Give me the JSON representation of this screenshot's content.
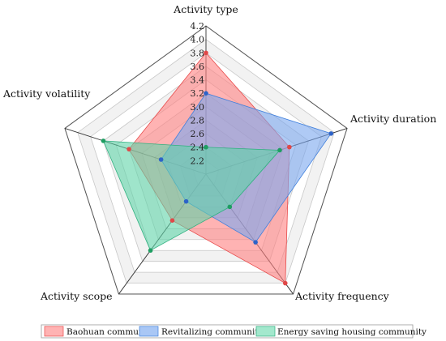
{
  "chart_data": {
    "type": "radar",
    "title": "",
    "axes": [
      "Activity type",
      "Activity duration",
      "Activity frequency",
      "Activity scope",
      "Activity volatility"
    ],
    "range": [
      2.0,
      4.2
    ],
    "ticks": [
      "4.2",
      "4.0",
      "3.8",
      "3.6",
      "3.4",
      "3.2",
      "3.0",
      "2.8",
      "2.6",
      "2.4",
      "2.2"
    ],
    "grid": true,
    "legend_position": "bottom",
    "series": [
      {
        "name": "Baohuan community",
        "values": [
          3.8,
          3.3,
          4.0,
          2.85,
          3.2
        ],
        "fill": "#ff8080",
        "stroke": "#e84a4a",
        "marker": "#e04848"
      },
      {
        "name": "Revitalizing community",
        "values": [
          3.2,
          3.95,
          3.25,
          2.5,
          2.7
        ],
        "fill": "#7aa7ee",
        "stroke": "#3f7fdc",
        "marker": "#2d63c8"
      },
      {
        "name": "Energy saving housing community",
        "values": [
          2.4,
          3.15,
          2.6,
          3.4,
          3.6
        ],
        "fill": "#5fd3a8",
        "stroke": "#2fb07f",
        "marker": "#1e9e62"
      }
    ]
  }
}
